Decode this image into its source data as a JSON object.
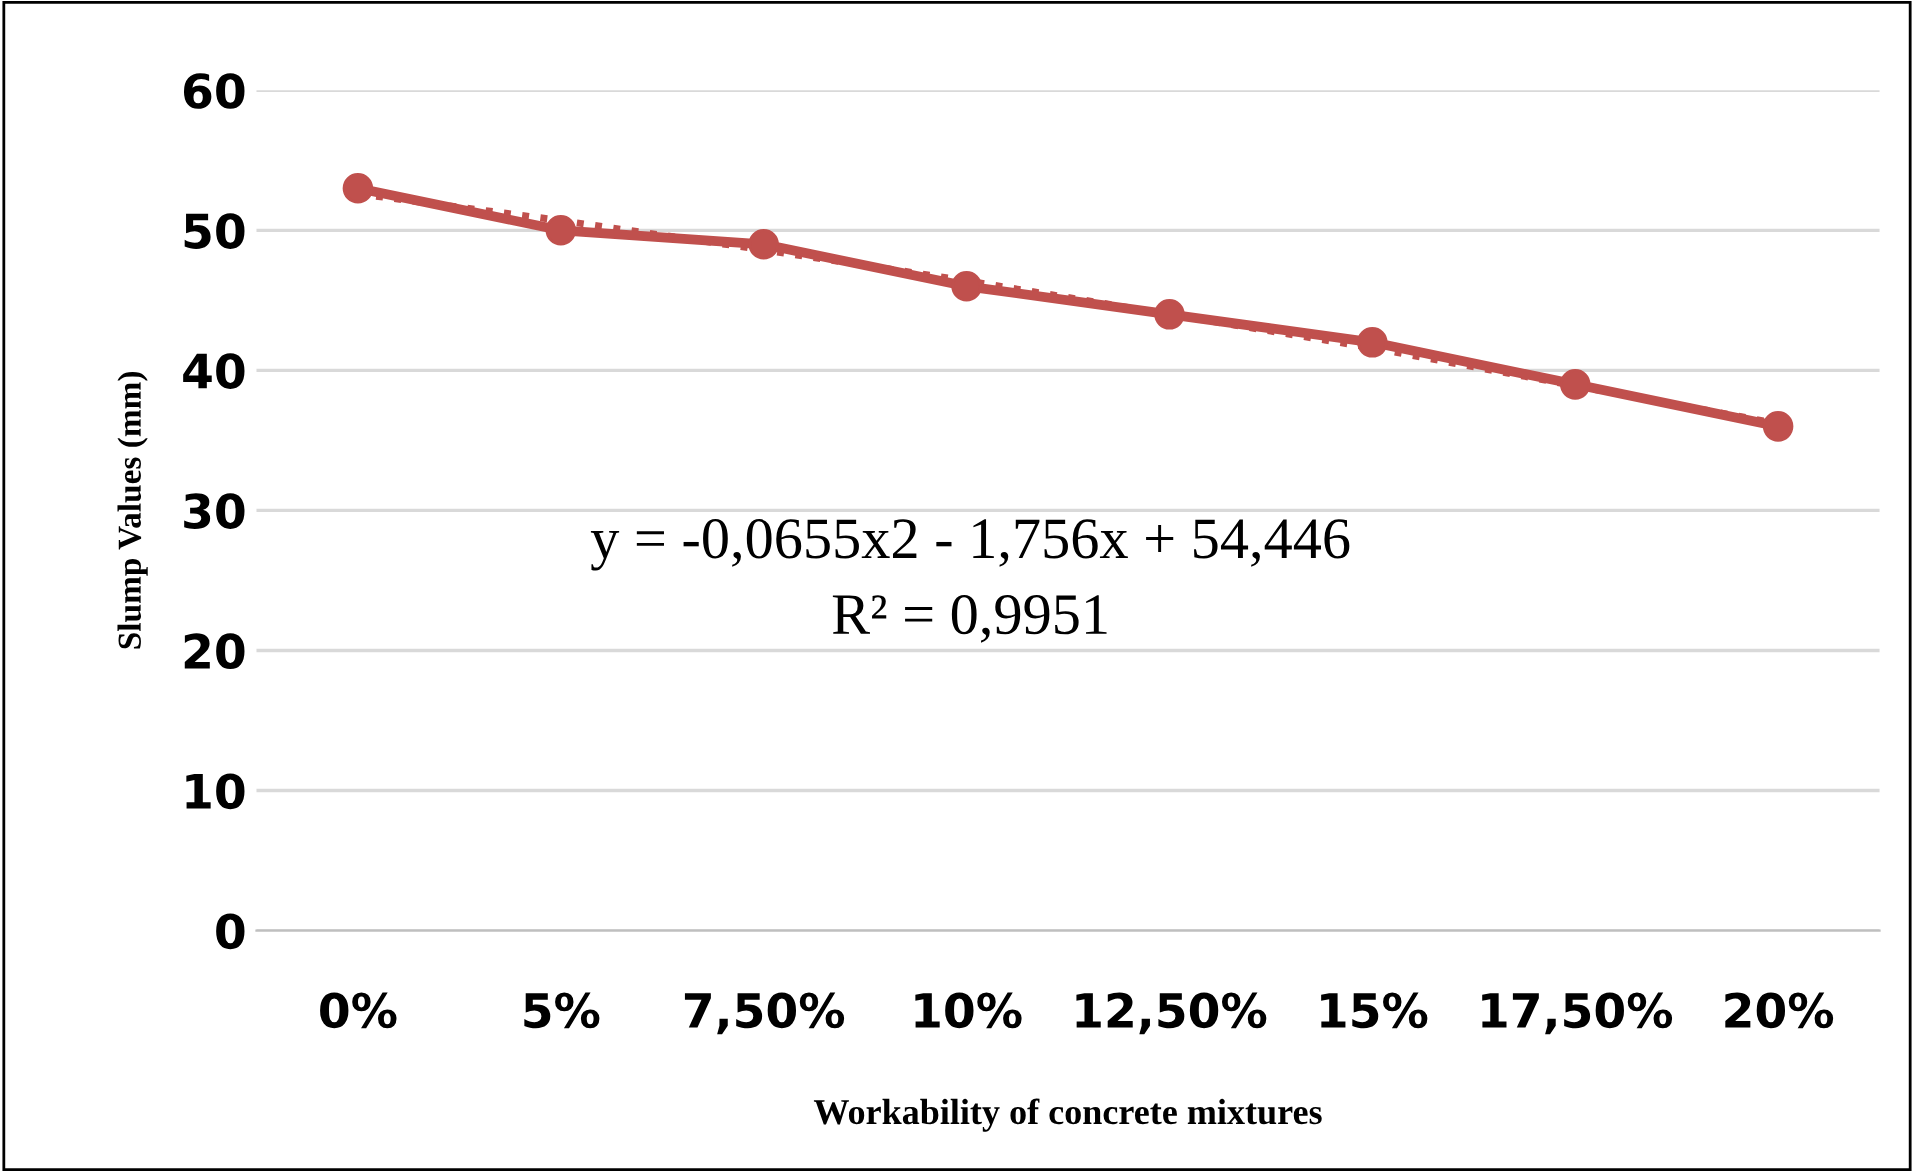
{
  "chart_data": {
    "type": "line",
    "xlabel": "Workability of concrete mixtures",
    "ylabel": "Slump Values (mm)",
    "categories": [
      "0%",
      "5%",
      "7,50%",
      "10%",
      "12,50%",
      "15%",
      "17,50%",
      "20%"
    ],
    "series": [
      {
        "color": "#c0504d",
        "values": [
          52.6,
          50.7,
          48.6,
          46.4,
          44.0,
          41.6,
          38.9,
          36.2
        ],
        "marker": "none",
        "line_style": "dotted"
      },
      {
        "color": "#c0504d",
        "values": [
          53,
          50,
          49,
          46,
          44,
          42,
          39,
          36
        ],
        "marker": "circle",
        "line_style": "solid"
      }
    ],
    "ylim": [
      0,
      60
    ],
    "yticks": [
      0,
      10,
      20,
      30,
      40,
      50,
      60
    ],
    "grid": "y",
    "legend": false,
    "annotations": [
      "y = -0,0655x2 - 1,756x + 54,446",
      "R² = 0,9951"
    ]
  }
}
